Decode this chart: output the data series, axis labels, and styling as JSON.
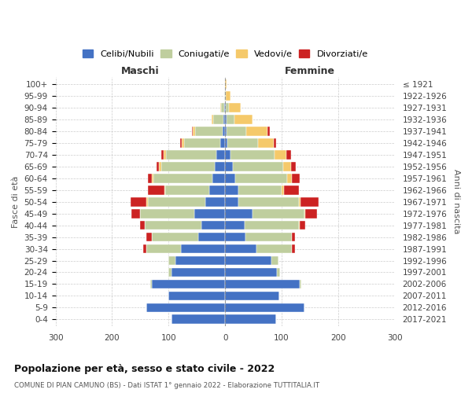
{
  "age_groups": [
    "0-4",
    "5-9",
    "10-14",
    "15-19",
    "20-24",
    "25-29",
    "30-34",
    "35-39",
    "40-44",
    "45-49",
    "50-54",
    "55-59",
    "60-64",
    "65-69",
    "70-74",
    "75-79",
    "80-84",
    "85-89",
    "90-94",
    "95-99",
    "100+"
  ],
  "birth_years": [
    "2017-2021",
    "2012-2016",
    "2007-2011",
    "2002-2006",
    "1997-2001",
    "1992-1996",
    "1987-1991",
    "1982-1986",
    "1977-1981",
    "1972-1976",
    "1967-1971",
    "1962-1966",
    "1957-1961",
    "1952-1956",
    "1947-1951",
    "1942-1946",
    "1937-1941",
    "1932-1936",
    "1927-1931",
    "1922-1926",
    "≤ 1921"
  ],
  "maschi_celibi": [
    95,
    140,
    100,
    130,
    95,
    88,
    78,
    48,
    42,
    55,
    35,
    28,
    22,
    18,
    15,
    8,
    5,
    3,
    1,
    0,
    0
  ],
  "maschi_coniugati": [
    0,
    0,
    0,
    2,
    5,
    12,
    62,
    82,
    100,
    95,
    102,
    78,
    105,
    95,
    90,
    65,
    48,
    18,
    6,
    1,
    0
  ],
  "maschi_vedovi": [
    0,
    0,
    0,
    0,
    0,
    0,
    0,
    0,
    0,
    1,
    2,
    2,
    2,
    4,
    4,
    4,
    4,
    3,
    2,
    0,
    0
  ],
  "maschi_divorziati": [
    0,
    0,
    0,
    0,
    0,
    0,
    5,
    10,
    8,
    15,
    28,
    28,
    8,
    4,
    4,
    2,
    2,
    0,
    0,
    0,
    0
  ],
  "femmine_nubili": [
    90,
    140,
    96,
    132,
    92,
    82,
    56,
    36,
    34,
    48,
    24,
    24,
    18,
    14,
    10,
    4,
    3,
    2,
    1,
    0,
    0
  ],
  "femmine_coniugate": [
    0,
    0,
    0,
    2,
    5,
    12,
    62,
    82,
    96,
    92,
    106,
    76,
    92,
    88,
    78,
    54,
    34,
    14,
    5,
    1,
    0
  ],
  "femmine_vedove": [
    0,
    0,
    0,
    0,
    0,
    0,
    0,
    0,
    2,
    2,
    3,
    4,
    8,
    15,
    20,
    28,
    38,
    32,
    22,
    8,
    2
  ],
  "femmine_divorziate": [
    0,
    0,
    0,
    0,
    0,
    0,
    5,
    5,
    10,
    20,
    32,
    26,
    14,
    8,
    8,
    4,
    4,
    0,
    0,
    0,
    0
  ],
  "color_celibi": "#4472C4",
  "color_coniugati": "#BFCE9E",
  "color_vedovi": "#F5C96A",
  "color_divorziati": "#CC2222",
  "title": "Popolazione per età, sesso e stato civile - 2022",
  "subtitle": "COMUNE DI PIAN CAMUNO (BS) - Dati ISTAT 1° gennaio 2022 - Elaborazione TUTTITALIA.IT",
  "label_maschi": "Maschi",
  "label_femmine": "Femmine",
  "ylabel_left": "Fasce di età",
  "ylabel_right": "Anni di nascita",
  "legend_labels": [
    "Celibi/Nubili",
    "Coniugati/e",
    "Vedovi/e",
    "Divorziati/e"
  ],
  "xlim": 300,
  "xticks": [
    -300,
    -200,
    -100,
    0,
    100,
    200,
    300
  ]
}
